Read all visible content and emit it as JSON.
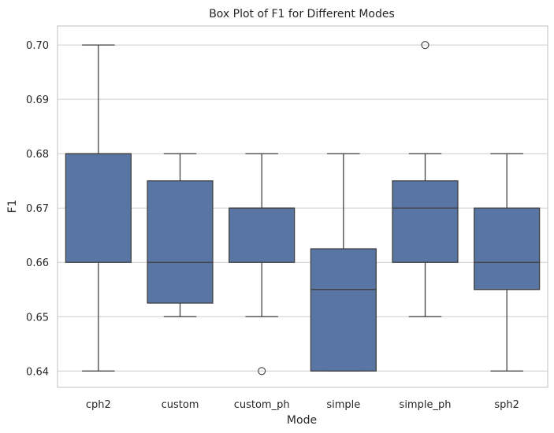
{
  "chart_data": {
    "type": "box",
    "title": "Box Plot of F1 for Different Modes",
    "xlabel": "Mode",
    "ylabel": "F1",
    "ylim": [
      0.637,
      0.7035
    ],
    "yticks": [
      "0.64",
      "0.65",
      "0.66",
      "0.67",
      "0.68",
      "0.69",
      "0.70"
    ],
    "grid": "horizontal",
    "box_color": "#5875a4",
    "line_color": "#3d3d3d",
    "grid_color": "#cccccc",
    "categories": [
      "cph2",
      "custom",
      "custom_ph",
      "simple",
      "simple_ph",
      "sph2"
    ],
    "boxes": [
      {
        "category": "cph2",
        "whisker_low": 0.64,
        "q1": 0.66,
        "median": 0.68,
        "q3": 0.68,
        "whisker_high": 0.7,
        "outliers": []
      },
      {
        "category": "custom",
        "whisker_low": 0.65,
        "q1": 0.6525,
        "median": 0.66,
        "q3": 0.675,
        "whisker_high": 0.68,
        "outliers": []
      },
      {
        "category": "custom_ph",
        "whisker_low": 0.65,
        "q1": 0.66,
        "median": 0.67,
        "q3": 0.67,
        "whisker_high": 0.68,
        "outliers": [
          0.64
        ]
      },
      {
        "category": "simple",
        "whisker_low": 0.64,
        "q1": 0.64,
        "median": 0.655,
        "q3": 0.6625,
        "whisker_high": 0.68,
        "outliers": []
      },
      {
        "category": "simple_ph",
        "whisker_low": 0.65,
        "q1": 0.66,
        "median": 0.67,
        "q3": 0.675,
        "whisker_high": 0.68,
        "outliers": [
          0.7
        ]
      },
      {
        "category": "sph2",
        "whisker_low": 0.64,
        "q1": 0.655,
        "median": 0.66,
        "q3": 0.67,
        "whisker_high": 0.68,
        "outliers": []
      }
    ]
  }
}
